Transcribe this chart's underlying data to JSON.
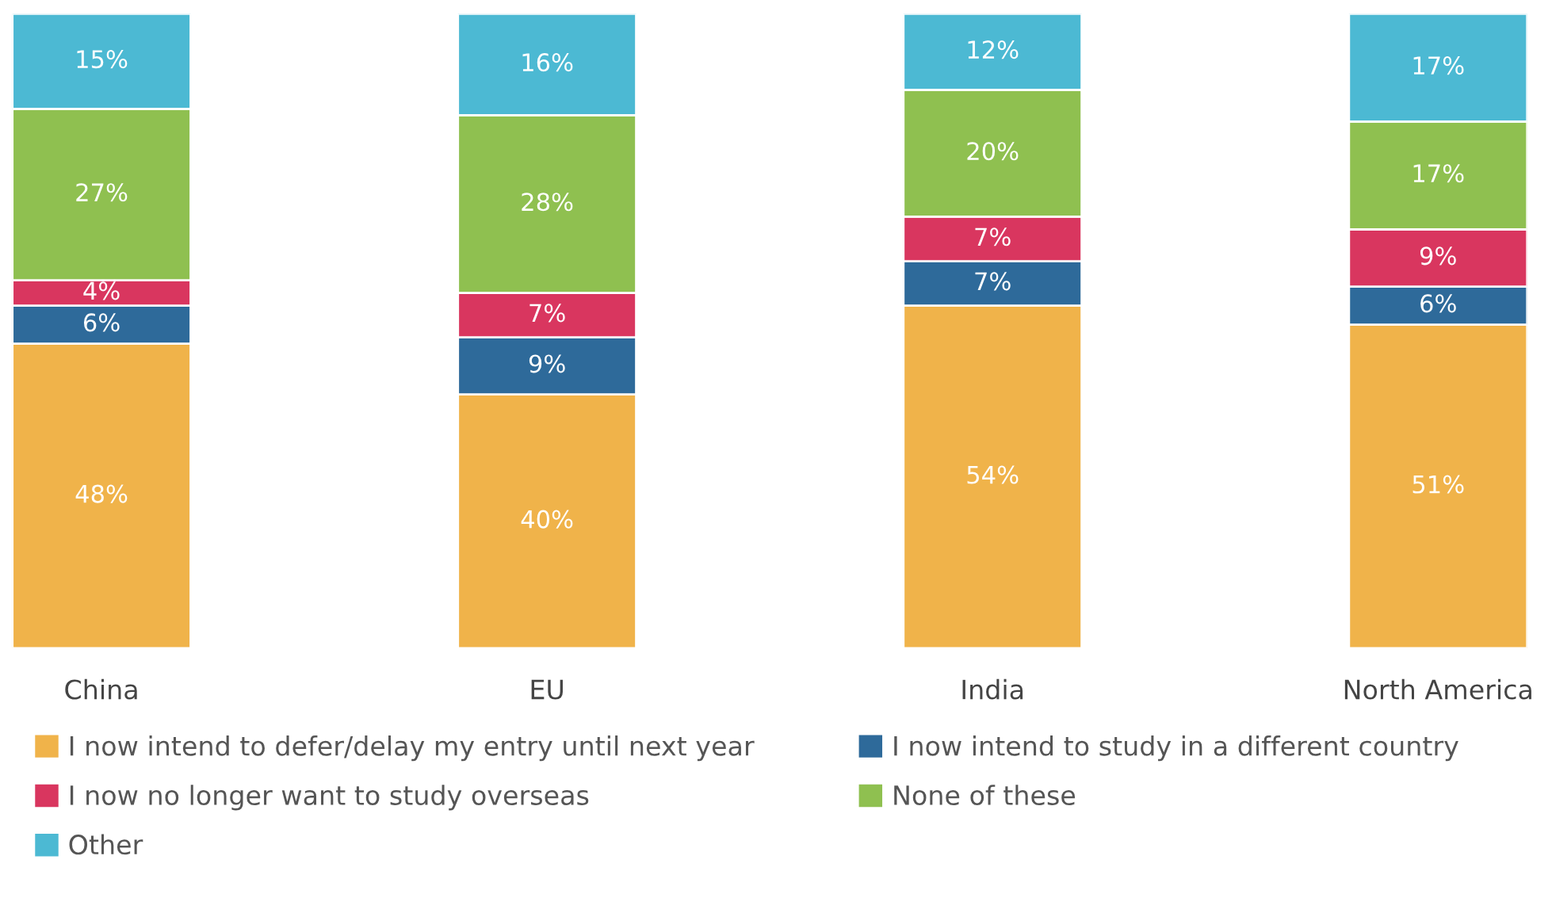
{
  "chart_data": {
    "type": "bar",
    "stacked": true,
    "legend": "bottom",
    "categories": [
      "China",
      "EU",
      "India",
      "North America"
    ],
    "series": [
      {
        "name": "I now intend to defer/delay my entry until next year",
        "color": "#f0b34a",
        "values": [
          48,
          40,
          54,
          51
        ],
        "value_labels": [
          "48%",
          "40%",
          "54%",
          "51%"
        ]
      },
      {
        "name": "I now intend to study in a different country",
        "color": "#2e6a9a",
        "values": [
          6,
          9,
          7,
          6
        ],
        "value_labels": [
          "6%",
          "9%",
          "7%",
          "6%"
        ]
      },
      {
        "name": "I now no longer want to study overseas",
        "color": "#d9365f",
        "values": [
          4,
          7,
          7,
          9
        ],
        "value_labels": [
          "4%",
          "7%",
          "7%",
          "9%"
        ]
      },
      {
        "name": "None of these",
        "color": "#8fc050",
        "values": [
          27,
          28,
          20,
          17
        ],
        "value_labels": [
          "27%",
          "28%",
          "20%",
          "17%"
        ]
      },
      {
        "name": "Other",
        "color": "#4cb9d3",
        "values": [
          15,
          16,
          12,
          17
        ],
        "value_labels": [
          "15%",
          "16%",
          "12%",
          "17%"
        ]
      }
    ]
  }
}
